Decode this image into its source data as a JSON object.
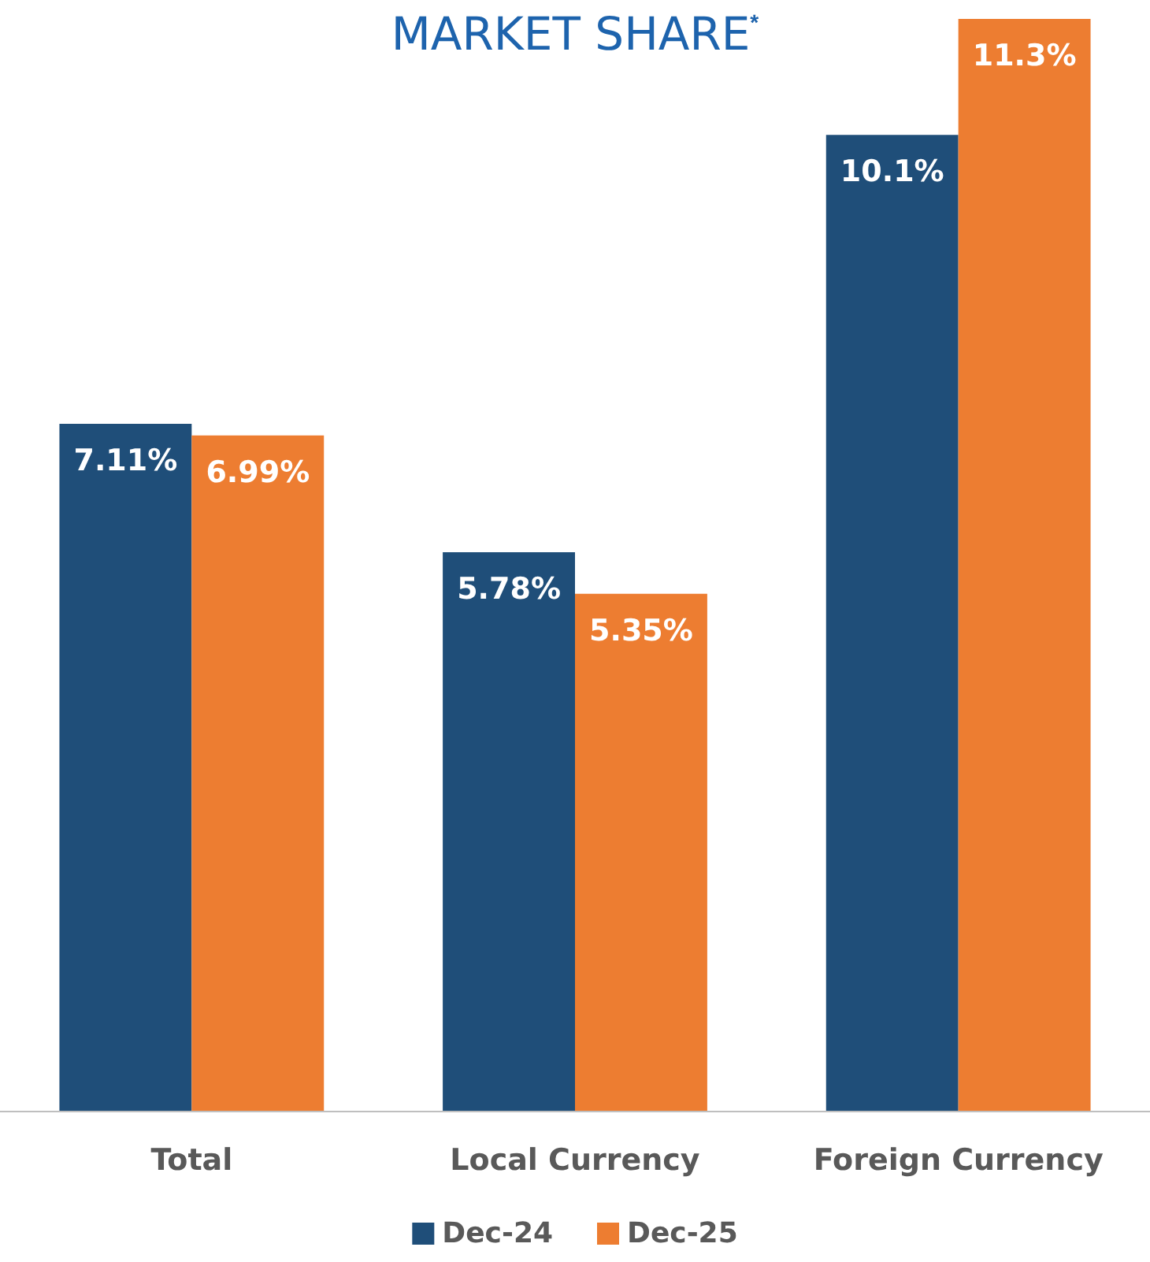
{
  "chart_data": {
    "type": "bar",
    "title": "MARKET SHARE$^{*}$",
    "categories": [
      "Total",
      "Local Currency",
      "Foreign Currency"
    ],
    "series": [
      {
        "name": "Dec-24",
        "color": "#1f4e79",
        "values": [
          7.11,
          5.78,
          10.1
        ],
        "value_labels": [
          "7.11%",
          "5.78%",
          "10.1%"
        ]
      },
      {
        "name": "Dec-25",
        "color": "#ed7d31",
        "values": [
          6.99,
          5.35,
          11.3
        ],
        "value_labels": [
          "6.99%",
          "5.35%",
          "11.3%"
        ]
      }
    ],
    "legend": "bottom"
  }
}
